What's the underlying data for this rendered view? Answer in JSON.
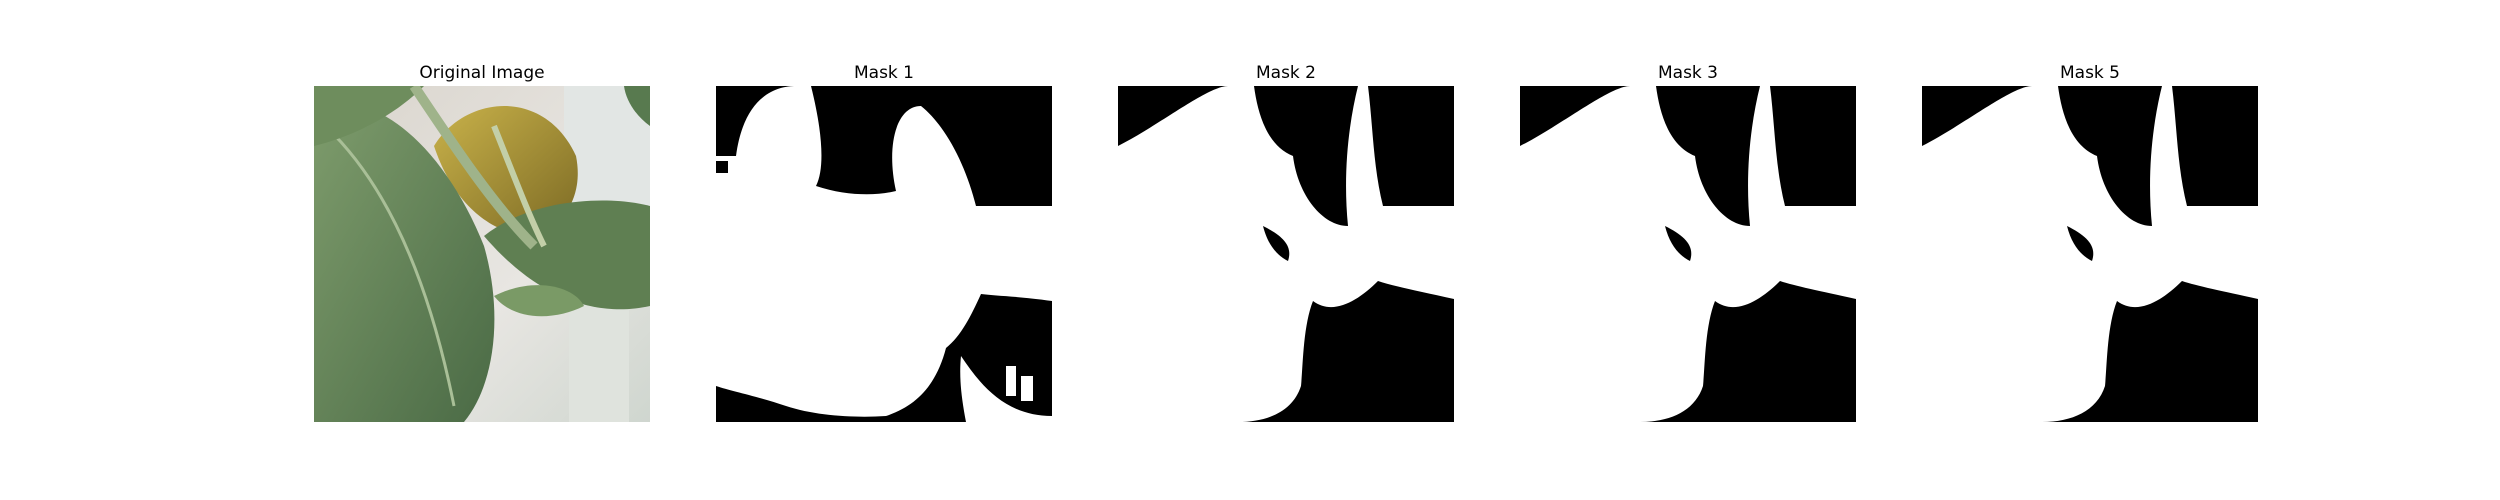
{
  "panels": [
    {
      "title": "Original Image",
      "kind": "photo"
    },
    {
      "title": "Mask 1",
      "kind": "mask"
    },
    {
      "title": "Mask 2",
      "kind": "mask"
    },
    {
      "title": "Mask 3",
      "kind": "mask"
    },
    {
      "title": "Mask 5",
      "kind": "mask"
    }
  ],
  "colors": {
    "mask_foreground": "#ffffff",
    "mask_background": "#000000",
    "leaf_green": "#6f8f62",
    "leaf_dark": "#3f5c3b",
    "leaf_yellow": "#b8a23a"
  }
}
